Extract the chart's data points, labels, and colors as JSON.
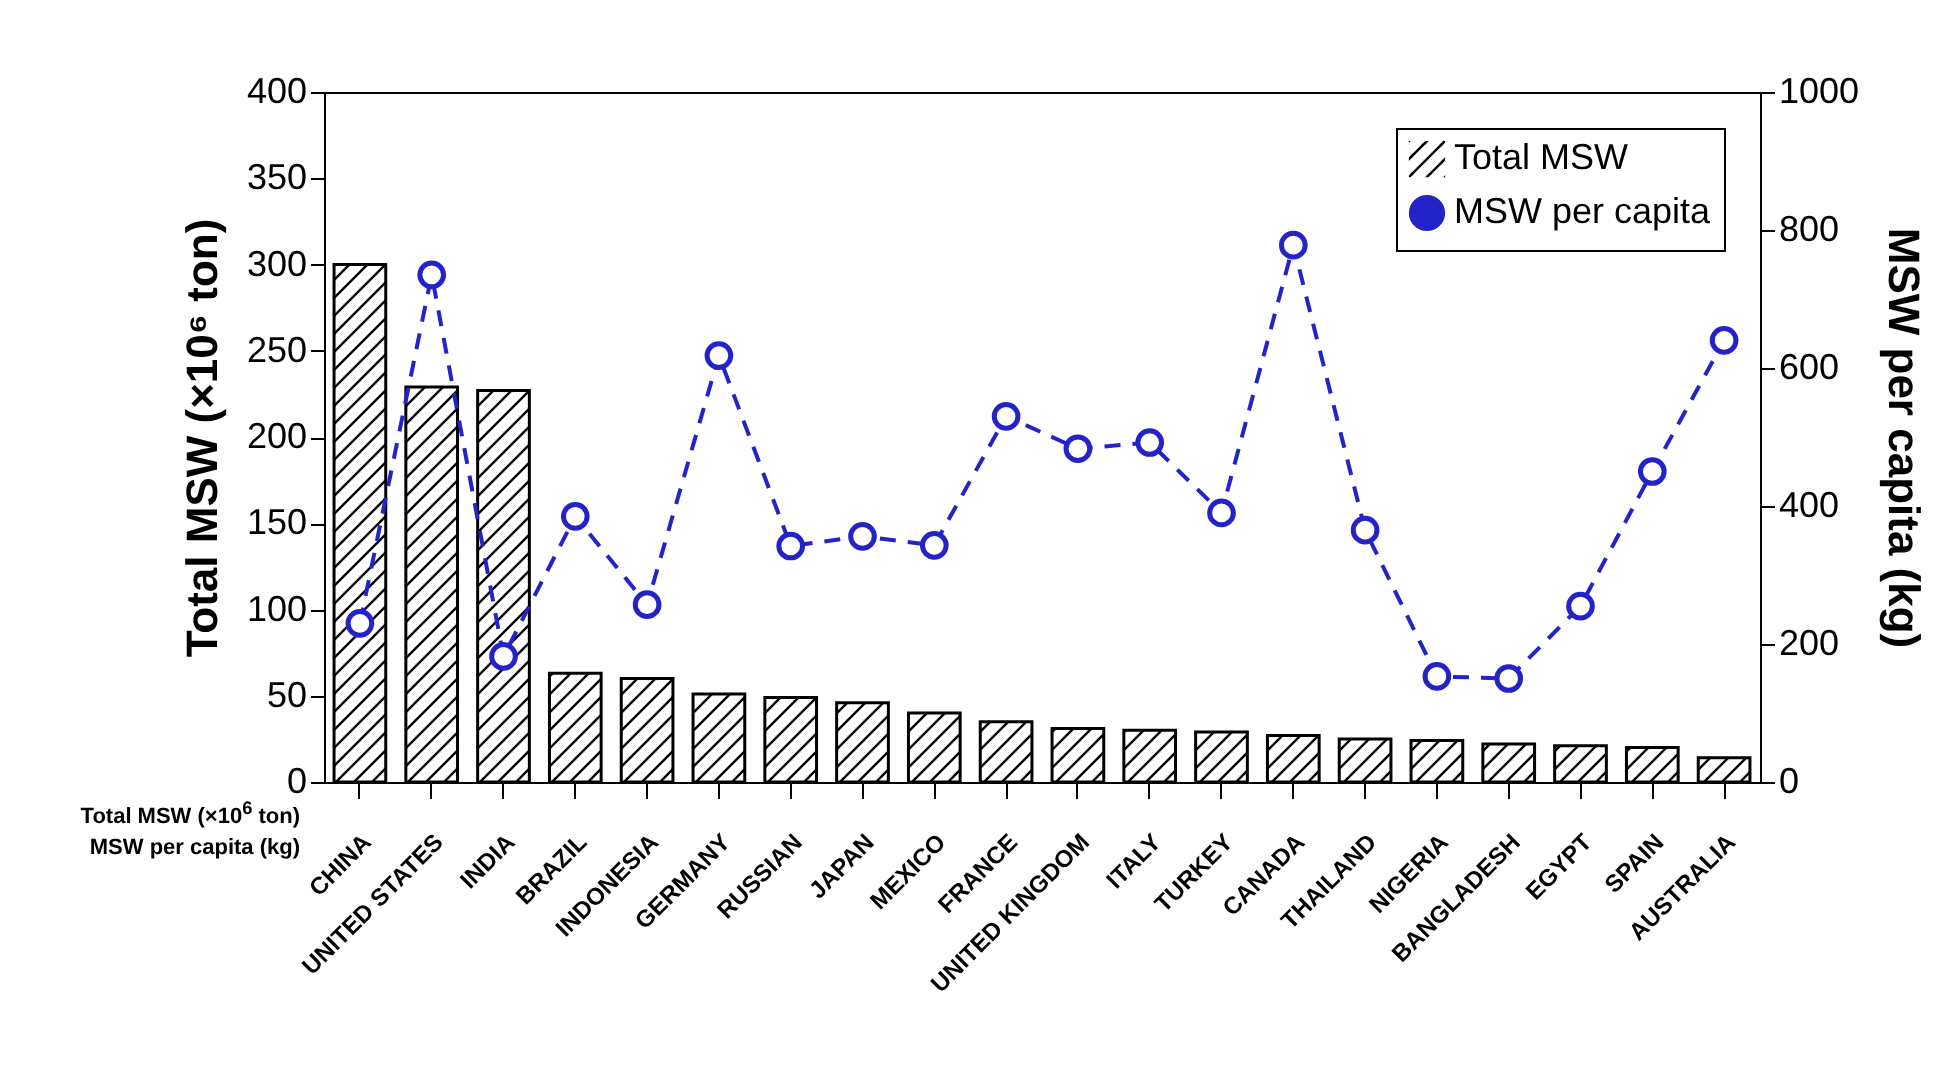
{
  "chart_data": {
    "type": "bar",
    "categories": [
      "CHINA",
      "UNITED STATES",
      "INDIA",
      "BRAZIL",
      "INDONESIA",
      "GERMANY",
      "RUSSIAN",
      "JAPAN",
      "MEXICO",
      "FRANCE",
      "UNITED KINGDOM",
      "ITALY",
      "TURKEY",
      "CANADA",
      "THAILAND",
      "NIGERIA",
      "BANGLADESH",
      "EGYPT",
      "SPAIN",
      "AUSTRALIA"
    ],
    "series": [
      {
        "name": "Total MSW",
        "color": "#000000",
        "values": [
          300,
          229,
          227,
          63,
          60,
          51,
          49,
          46,
          40,
          35,
          31,
          30,
          29,
          27,
          25,
          24,
          22,
          21,
          20,
          14
        ]
      },
      {
        "name": "MSW per capita",
        "type": "line",
        "axis": "y2",
        "color": "#2323c8",
        "values": [
          230,
          735,
          182,
          385,
          257,
          618,
          342,
          356,
          343,
          530,
          483,
          492,
          390,
          778,
          365,
          153,
          150,
          255,
          450,
          640
        ]
      }
    ],
    "ylabel": "Total MSW (×10⁶ ton)",
    "y2label": "MSW per capita (kg)",
    "ylim": [
      0,
      400
    ],
    "yticks": [
      0,
      50,
      100,
      150,
      200,
      250,
      300,
      350,
      400
    ],
    "y2lim": [
      0,
      1000
    ],
    "y2ticks": [
      0,
      200,
      400,
      600,
      800,
      1000
    ],
    "annotations": [
      "Total MSW (×10$^{6}$ ton)",
      "MSW per capita (kg)"
    ],
    "legend": "top right",
    "marker": "circle",
    "line_style": "dashed"
  }
}
